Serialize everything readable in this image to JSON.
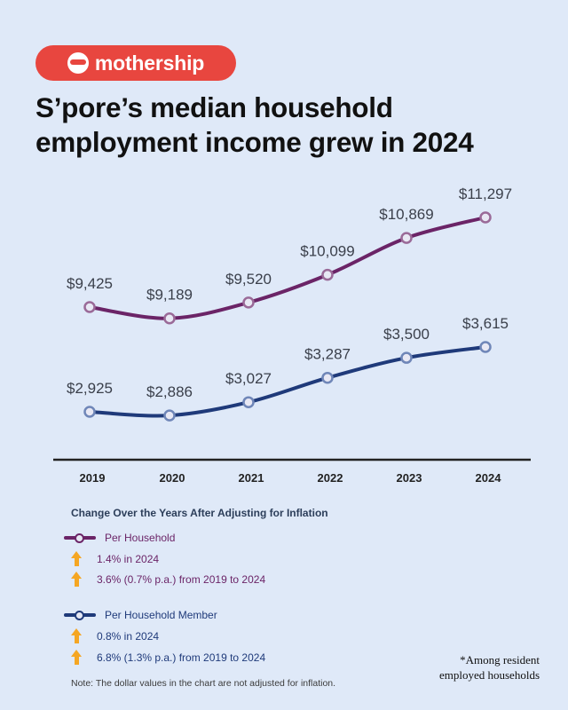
{
  "brand": {
    "name": "mothership",
    "color": "#e8463f"
  },
  "headline": {
    "line1": "S’pore’s median household",
    "line2": "employment income grew in 2024"
  },
  "chart_data": {
    "type": "line",
    "x": [
      "2019",
      "2020",
      "2021",
      "2022",
      "2023",
      "2024"
    ],
    "series": [
      {
        "name": "Per Household",
        "color": "#6b2467",
        "values": [
          9425,
          9189,
          9520,
          10099,
          10869,
          11297
        ],
        "labels": [
          "$9,425",
          "$9,189",
          "$9,520",
          "$10,099",
          "$10,869",
          "$11,297"
        ]
      },
      {
        "name": "Per Household Member",
        "color": "#1f3a7a",
        "values": [
          2925,
          2886,
          3027,
          3287,
          3500,
          3615
        ],
        "labels": [
          "$2,925",
          "$2,886",
          "$3,027",
          "$3,287",
          "$3,500",
          "$3,615"
        ]
      }
    ],
    "grid": false,
    "legend_position": "bottom-left"
  },
  "legend": {
    "title": "Change Over the Years After Adjusting for Inflation",
    "groups": [
      {
        "label": "Per Household",
        "color": "#6b2467",
        "items": [
          "1.4% in 2024",
          "3.6% (0.7% p.a.) from 2019 to 2024"
        ]
      },
      {
        "label": "Per Household Member",
        "color": "#1f3a7a",
        "items": [
          "0.8% in 2024",
          "6.8% (1.3% p.a.) from 2019 to 2024"
        ]
      }
    ]
  },
  "note": "Note: The dollar values in the chart are not adjusted for inflation.",
  "footnote": {
    "line1": "*Among resident",
    "line2": "employed households"
  },
  "colors": {
    "background": "#dfe9f8",
    "arrow": "#f5a623",
    "axis": "#222222"
  }
}
